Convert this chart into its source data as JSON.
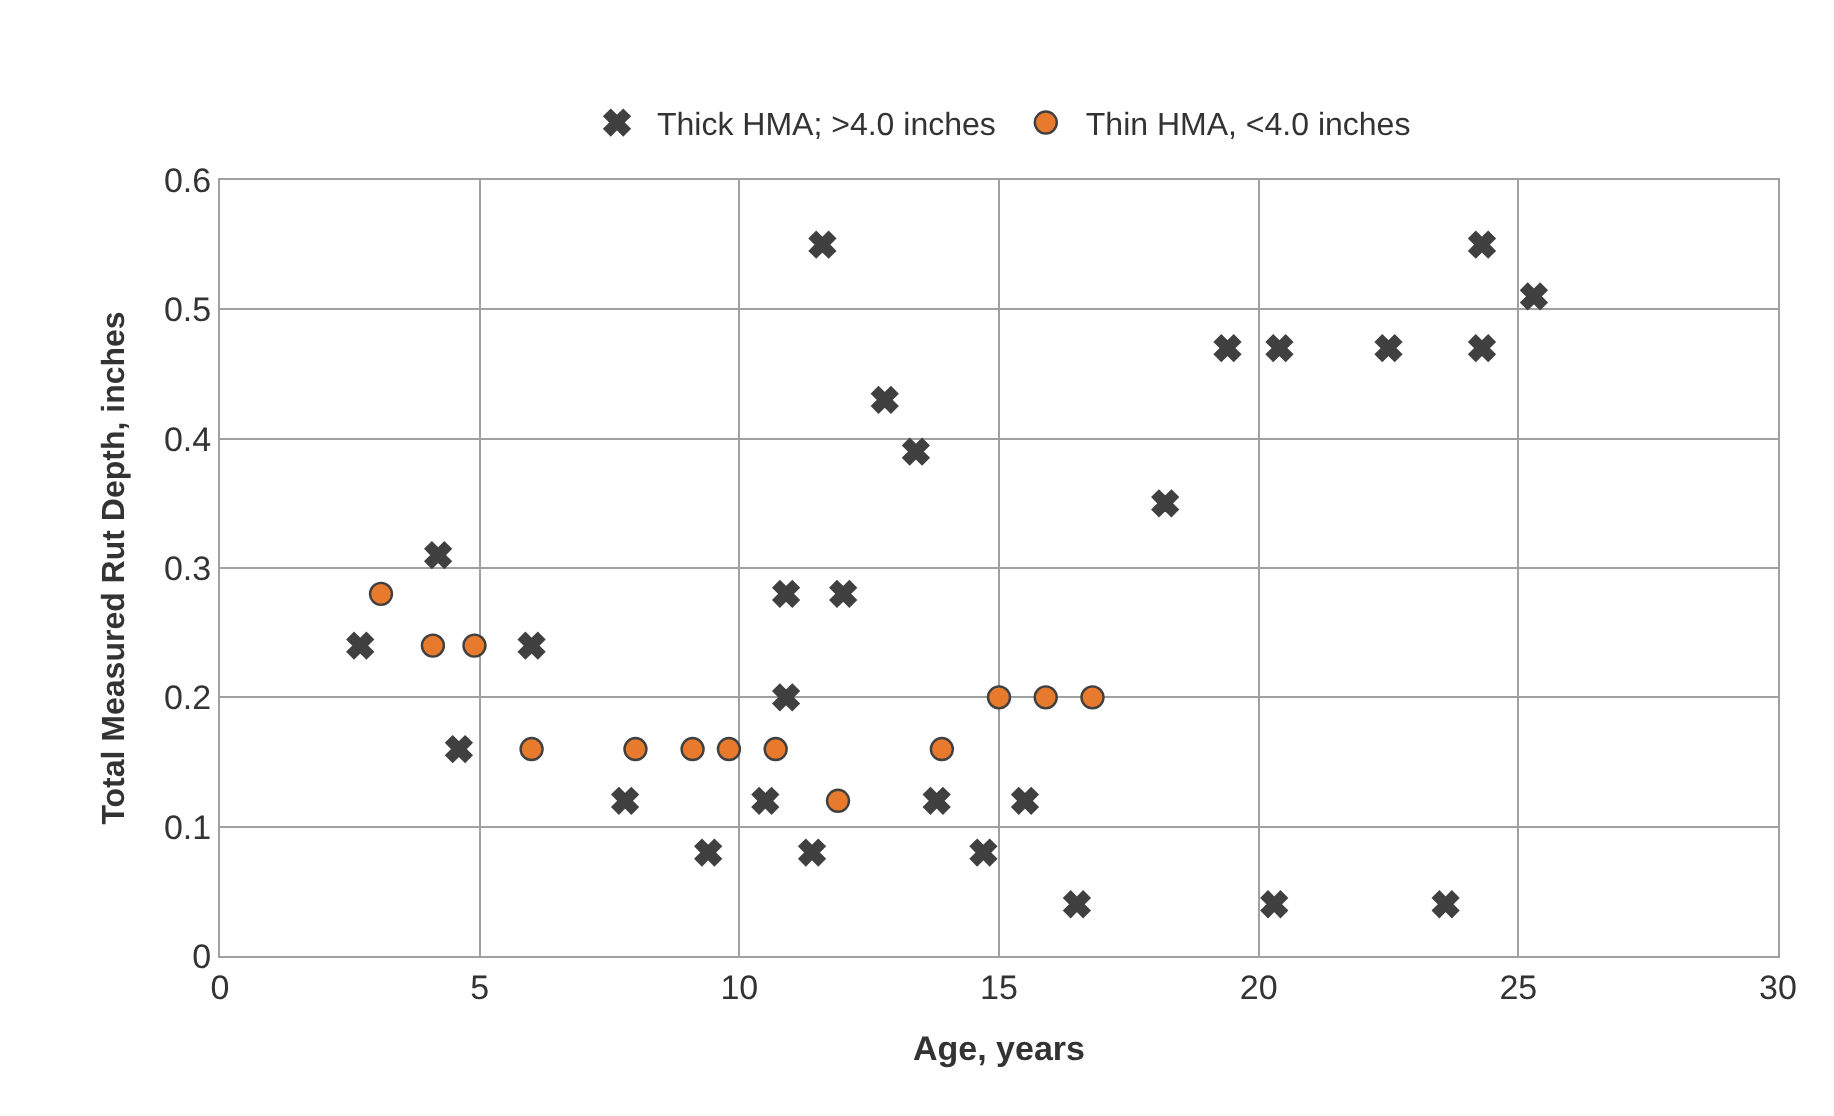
{
  "chart_data": {
    "type": "scatter",
    "xlabel": "Age, years",
    "ylabel": "Total Measured Rut Depth, inches",
    "xlim": [
      0,
      30
    ],
    "xticks": [
      0,
      5,
      10,
      15,
      20,
      25,
      30
    ],
    "ylim": [
      0,
      0.6
    ],
    "yticks": [
      0,
      0.1,
      0.2,
      0.3,
      0.4,
      0.5,
      0.6
    ],
    "grid": true,
    "legend": "top",
    "series": [
      {
        "name": "Thick HMA; >4.0 inches",
        "color": "#404040",
        "marker": "cross",
        "x": [
          2.7,
          4.2,
          4.6,
          6.0,
          7.8,
          9.4,
          10.5,
          10.9,
          10.9,
          11.4,
          11.6,
          12.0,
          12.8,
          13.4,
          13.8,
          14.7,
          15.5,
          16.5,
          18.2,
          19.4,
          20.3,
          20.4,
          22.5,
          23.6,
          24.3,
          24.3,
          25.3
        ],
        "values": [
          0.24,
          0.31,
          0.16,
          0.24,
          0.12,
          0.08,
          0.12,
          0.28,
          0.2,
          0.08,
          0.55,
          0.28,
          0.43,
          0.39,
          0.12,
          0.08,
          0.12,
          0.04,
          0.35,
          0.47,
          0.04,
          0.47,
          0.47,
          0.04,
          0.55,
          0.47,
          0.51
        ]
      },
      {
        "name": "Thin HMA, <4.0 inches",
        "color": "#e87a2e",
        "marker": "circle",
        "x": [
          3.1,
          4.1,
          4.9,
          6.0,
          8.0,
          9.1,
          9.8,
          10.7,
          11.9,
          13.9,
          15.0,
          15.9,
          16.8
        ],
        "values": [
          0.28,
          0.24,
          0.24,
          0.16,
          0.16,
          0.16,
          0.16,
          0.16,
          0.12,
          0.16,
          0.2,
          0.2,
          0.2
        ]
      }
    ]
  }
}
